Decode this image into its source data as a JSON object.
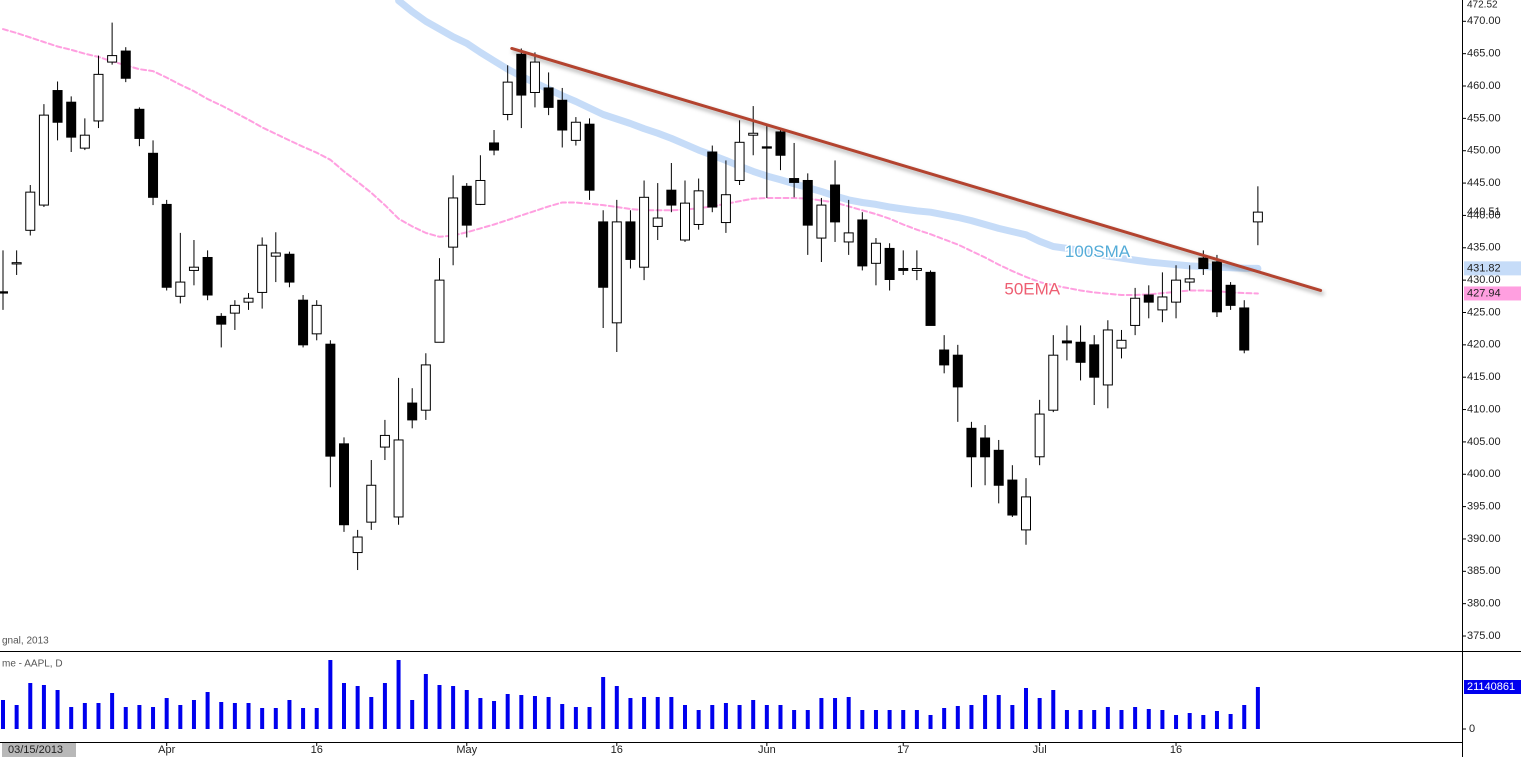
{
  "chart_data": {
    "type": "candlestick",
    "categories": [
      null,
      null,
      "03/15/2013",
      null,
      null,
      null,
      null,
      null,
      null,
      null,
      null,
      null,
      "Apr",
      null,
      null,
      null,
      null,
      null,
      null,
      null,
      null,
      null,
      null,
      "16",
      null,
      null,
      null,
      null,
      null,
      null,
      null,
      null,
      null,
      null,
      "May",
      null,
      null,
      null,
      null,
      null,
      null,
      null,
      null,
      null,
      null,
      "16",
      null,
      null,
      null,
      null,
      null,
      null,
      null,
      null,
      null,
      null,
      "Jun",
      null,
      null,
      null,
      null,
      null,
      null,
      null,
      null,
      null,
      "17",
      null,
      null,
      null,
      null,
      null,
      null,
      null,
      null,
      null,
      "Jul",
      null,
      null,
      null,
      null,
      null,
      null,
      null,
      null,
      null,
      "16",
      null,
      null,
      null,
      null,
      null,
      null
    ],
    "open": [
      428.2,
      432.5,
      437.7,
      441.6,
      459.3,
      457.5,
      450.4,
      454.6,
      463.7,
      465.4,
      456.4,
      449.6,
      441.7,
      427.5,
      431.5,
      433.5,
      424.4,
      424.9,
      426.6,
      428.1,
      433.7,
      434.0,
      426.9,
      421.7,
      420.1,
      404.7,
      387.9,
      392.6,
      404.2,
      393.4,
      411.0,
      409.9,
      420.4,
      435.1,
      444.5,
      441.7,
      451.2,
      455.6,
      464.9,
      459.0,
      459.7,
      457.8,
      451.6,
      454.1,
      439.0,
      423.4,
      439.0,
      432.0,
      438.3,
      443.9,
      436.2,
      438.6,
      449.8,
      438.9,
      445.4,
      452.4,
      450.6,
      452.9,
      445.7,
      445.4,
      436.5,
      444.7,
      435.9,
      439.3,
      432.6,
      434.9,
      431.8,
      431.5,
      431.2,
      419.2,
      418.4,
      407.1,
      405.6,
      403.7,
      399.1,
      391.4,
      402.7,
      409.9,
      420.6,
      420.4,
      420.0,
      413.8,
      419.5,
      423.0,
      427.7,
      425.4,
      426.6,
      429.7,
      433.4,
      432.8,
      429.2,
      425.7,
      439.0
    ],
    "high": [
      434.6,
      434.6,
      444.7,
      457.2,
      460.7,
      458.4,
      455.0,
      464.7,
      469.8,
      466.0,
      456.7,
      451.6,
      442.4,
      437.3,
      436.2,
      434.6,
      424.9,
      426.9,
      428.0,
      436.6,
      437.4,
      434.4,
      427.7,
      426.9,
      420.7,
      405.7,
      391.4,
      402.2,
      408.4,
      414.9,
      413.3,
      418.7,
      433.4,
      446.2,
      445.0,
      449.3,
      453.2,
      463.2,
      465.8,
      465.2,
      462.1,
      459.7,
      455.2,
      455.0,
      440.8,
      442.4,
      440.8,
      445.4,
      445.0,
      448.1,
      445.4,
      445.7,
      450.8,
      448.5,
      454.7,
      456.9,
      453.9,
      453.5,
      451.2,
      446.5,
      442.7,
      448.5,
      442.4,
      440.5,
      436.5,
      435.7,
      434.6,
      434.6,
      431.5,
      421.5,
      420.0,
      408.1,
      407.6,
      405.3,
      401.4,
      399.4,
      411.5,
      421.5,
      423.0,
      423.0,
      421.5,
      423.8,
      422.3,
      428.8,
      429.2,
      431.2,
      432.3,
      432.3,
      434.6,
      433.9,
      429.7,
      426.9,
      444.5
    ],
    "low": [
      425.4,
      430.8,
      436.9,
      441.3,
      451.6,
      449.8,
      450.1,
      453.5,
      463.3,
      460.6,
      450.7,
      441.6,
      428.4,
      426.4,
      429.2,
      426.9,
      419.6,
      422.3,
      425.4,
      425.6,
      429.7,
      428.9,
      419.6,
      420.7,
      398.0,
      391.1,
      385.2,
      391.4,
      402.2,
      392.2,
      407.1,
      408.4,
      420.4,
      432.3,
      436.6,
      441.6,
      449.3,
      454.7,
      453.5,
      456.7,
      455.5,
      450.5,
      450.8,
      442.4,
      422.6,
      418.9,
      431.8,
      430.0,
      436.2,
      440.5,
      435.9,
      437.8,
      440.5,
      437.3,
      444.7,
      449.3,
      442.7,
      447.0,
      442.8,
      433.9,
      432.8,
      435.9,
      433.9,
      431.5,
      429.2,
      428.4,
      430.8,
      430.0,
      423.0,
      415.6,
      408.1,
      398.0,
      398.3,
      395.5,
      393.4,
      389.1,
      401.4,
      409.6,
      417.6,
      414.5,
      410.7,
      410.2,
      417.9,
      421.5,
      424.1,
      423.5,
      424.1,
      428.4,
      430.8,
      424.3,
      425.4,
      418.7,
      435.4
    ],
    "close": [
      428.0,
      432.7,
      443.6,
      455.5,
      454.4,
      452.1,
      452.4,
      461.8,
      464.7,
      461.2,
      451.9,
      442.8,
      428.9,
      429.7,
      432.0,
      427.7,
      423.2,
      426.1,
      427.2,
      435.4,
      434.2,
      429.7,
      420.0,
      426.1,
      402.8,
      392.2,
      390.3,
      398.3,
      406.0,
      405.3,
      408.4,
      416.9,
      430.0,
      442.7,
      438.5,
      445.4,
      450.1,
      460.6,
      458.6,
      463.7,
      456.7,
      453.2,
      454.4,
      443.9,
      428.9,
      439.0,
      433.2,
      442.8,
      439.6,
      441.6,
      441.9,
      443.8,
      441.3,
      443.2,
      451.3,
      452.7,
      450.4,
      449.3,
      445.1,
      438.5,
      441.6,
      439.0,
      437.3,
      432.2,
      435.7,
      430.1,
      431.5,
      431.8,
      423.0,
      416.9,
      413.5,
      402.7,
      402.7,
      398.3,
      393.7,
      396.5,
      409.3,
      418.4,
      420.3,
      417.3,
      415.0,
      422.3,
      420.7,
      427.2,
      426.6,
      427.4,
      430.0,
      430.2,
      431.8,
      425.1,
      426.1,
      419.2,
      440.51
    ],
    "up_color": "#ffffff",
    "down_color": "#000000",
    "ylim": [
      372.84,
      472.52
    ],
    "yticks": [
      {
        "value": 375,
        "label": "375.00"
      },
      {
        "value": 380,
        "label": "380.00"
      },
      {
        "value": 385,
        "label": "385.00"
      },
      {
        "value": 390,
        "label": "390.00"
      },
      {
        "value": 395,
        "label": "395.00"
      },
      {
        "value": 400,
        "label": "400.00"
      },
      {
        "value": 405,
        "label": "405.00"
      },
      {
        "value": 410,
        "label": "410.00"
      },
      {
        "value": 415,
        "label": "415.00"
      },
      {
        "value": 420,
        "label": "420.00"
      },
      {
        "value": 425,
        "label": "425.00"
      },
      {
        "value": 430,
        "label": "430.00"
      },
      {
        "value": 435,
        "label": "435.00"
      },
      {
        "value": 440,
        "label": "440.00"
      },
      {
        "value": 445,
        "label": "445.00"
      },
      {
        "value": 450,
        "label": "450.00"
      },
      {
        "value": 455,
        "label": "455.00"
      },
      {
        "value": 460,
        "label": "460.00"
      },
      {
        "value": 465,
        "label": "465.00"
      },
      {
        "value": 470,
        "label": "470.00"
      }
    ],
    "series": [
      {
        "name": "100SMA",
        "color": "#c6dcf8",
        "label_color": "#55acd8",
        "values": [
          null,
          null,
          null,
          null,
          null,
          null,
          null,
          null,
          null,
          null,
          null,
          null,
          null,
          null,
          null,
          null,
          null,
          null,
          null,
          null,
          null,
          null,
          null,
          null,
          null,
          null,
          null,
          null,
          null,
          473.2,
          471.5,
          470.0,
          468.8,
          467.6,
          466.6,
          465.2,
          463.9,
          462.6,
          461.5,
          460.5,
          459.5,
          458.5,
          457.6,
          456.6,
          455.6,
          454.9,
          454.2,
          453.4,
          452.7,
          451.9,
          451.0,
          450.1,
          449.3,
          448.5,
          447.6,
          446.8,
          446.1,
          445.5,
          444.9,
          444.3,
          443.7,
          443.0,
          442.4,
          442.0,
          441.7,
          441.3,
          441.0,
          440.7,
          440.5,
          440.1,
          439.7,
          439.2,
          438.6,
          438.0,
          437.5,
          437.0,
          436.0,
          435.2,
          434.9,
          434.6,
          434.1,
          433.7,
          433.4,
          433.1,
          432.8,
          432.6,
          432.4,
          432.2,
          432.1,
          432.0,
          431.9,
          431.85,
          431.82
        ]
      },
      {
        "name": "50EMA",
        "color": "#ff9fe0",
        "label_color": "#ee5e72",
        "dashed": true,
        "values": [
          468.8,
          468.2,
          467.5,
          466.8,
          466.1,
          465.6,
          465.0,
          464.5,
          463.8,
          463.2,
          462.6,
          462.3,
          461.3,
          460.2,
          459.2,
          458.0,
          457.0,
          455.9,
          454.8,
          453.6,
          452.6,
          451.6,
          450.6,
          449.7,
          448.6,
          446.8,
          445.2,
          443.5,
          441.6,
          439.5,
          438.3,
          437.3,
          436.7,
          436.9,
          437.4,
          438.0,
          438.6,
          439.3,
          440.0,
          440.7,
          441.4,
          442.0,
          442.0,
          441.8,
          441.6,
          441.3,
          441.0,
          440.8,
          440.8,
          440.8,
          440.9,
          441.1,
          441.4,
          441.8,
          442.2,
          442.6,
          442.7,
          442.7,
          442.7,
          442.6,
          442.3,
          442.0,
          441.4,
          440.8,
          440.2,
          439.5,
          438.6,
          437.8,
          437.1,
          436.3,
          435.5,
          434.5,
          433.5,
          432.4,
          431.4,
          430.5,
          429.7,
          429.2,
          428.8,
          428.4,
          428.1,
          427.9,
          427.7,
          427.7,
          427.8,
          428.0,
          428.2,
          428.4,
          428.4,
          428.3,
          428.1,
          428.0,
          427.94
        ]
      }
    ],
    "trendline": {
      "color": "#b3432f",
      "x": [
        37.3,
        96.6
      ],
      "y": [
        465.8,
        428.4
      ]
    },
    "volume": {
      "color": "#0000ee",
      "ylim": [
        0,
        38760000
      ],
      "yticks": [
        0
      ],
      "values": [
        14600000,
        12080000,
        23150000,
        22150000,
        19630000,
        11070000,
        13090000,
        13090000,
        18120000,
        11070000,
        12080000,
        11070000,
        15600000,
        12080000,
        14600000,
        18620000,
        13590000,
        13090000,
        13090000,
        10570000,
        10570000,
        14600000,
        10570000,
        10570000,
        34730000,
        23150000,
        21640000,
        16110000,
        23150000,
        34730000,
        14600000,
        27680000,
        22150000,
        21640000,
        19630000,
        15600000,
        14090000,
        17620000,
        17110000,
        16610000,
        16110000,
        12580000,
        11070000,
        11070000,
        26170000,
        21640000,
        15600000,
        16110000,
        16110000,
        16110000,
        12080000,
        9560000,
        12080000,
        13090000,
        12080000,
        14600000,
        12080000,
        12080000,
        9560000,
        9560000,
        15600000,
        15600000,
        16110000,
        9560000,
        9560000,
        9560000,
        9560000,
        9560000,
        7050000,
        10570000,
        11580000,
        12080000,
        17110000,
        17110000,
        12080000,
        20640000,
        15600000,
        19630000,
        9560000,
        9560000,
        9560000,
        11070000,
        9560000,
        11070000,
        10070000,
        9560000,
        7050000,
        8050000,
        7050000,
        9060000,
        7550000,
        12080000,
        21140861
      ]
    },
    "panel_labels": [
      "gnal, 2013",
      "me - AAPL, D"
    ]
  }
}
